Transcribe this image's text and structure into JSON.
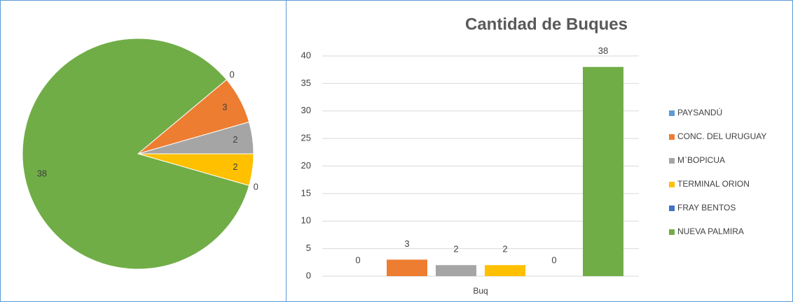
{
  "chart_data": [
    {
      "type": "pie",
      "values": [
        0,
        3,
        2,
        2,
        0,
        38
      ],
      "colors": [
        "#5b9bd5",
        "#ed7d31",
        "#a5a5a5",
        "#ffc000",
        "#4472c4",
        "#70ad47"
      ]
    },
    {
      "type": "bar",
      "title": "Cantidad de Buques",
      "categories": [
        "Buq"
      ],
      "series": [
        {
          "name": "PAYSANDÚ",
          "color": "#5b9bd5",
          "values": [
            0
          ]
        },
        {
          "name": "CONC. DEL URUGUAY",
          "color": "#ed7d31",
          "values": [
            3
          ]
        },
        {
          "name": "M`BOPICUA",
          "color": "#a5a5a5",
          "values": [
            2
          ]
        },
        {
          "name": "TERMINAL ORION",
          "color": "#ffc000",
          "values": [
            2
          ]
        },
        {
          "name": "FRAY BENTOS",
          "color": "#4472c4",
          "values": [
            0
          ]
        },
        {
          "name": "NUEVA PALMIRA",
          "color": "#70ad47",
          "values": [
            38
          ]
        }
      ],
      "ylim": [
        0,
        40
      ],
      "yticks": [
        0,
        5,
        10,
        15,
        20,
        25,
        30,
        35,
        40
      ],
      "grid": true,
      "legend": "right"
    }
  ]
}
